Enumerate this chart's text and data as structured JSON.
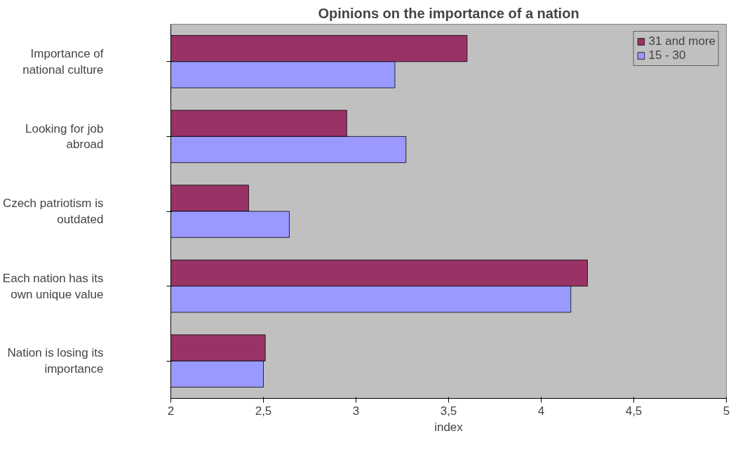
{
  "chart_data": {
    "type": "bar",
    "orientation": "horizontal",
    "title": "Opinions on the importance of a nation",
    "xlabel": "index",
    "categories": [
      "Importance of national culture",
      "Looking for job abroad",
      "Czech patriotism is outdated",
      "Each nation has its own unique value",
      "Nation is losing its importance"
    ],
    "series": [
      {
        "name": "31 and more",
        "color": "#993366",
        "values": [
          3.6,
          2.95,
          2.42,
          4.25,
          2.51
        ]
      },
      {
        "name": "15 - 30",
        "color": "#9999ff",
        "values": [
          3.21,
          3.27,
          2.64,
          4.16,
          2.5
        ]
      }
    ],
    "xlim": [
      2,
      5
    ],
    "xticks": [
      2,
      {
        "value": 2.5,
        "label": "2,5"
      },
      3,
      {
        "value": 3.5,
        "label": "3,5"
      },
      4,
      {
        "value": 4.5,
        "label": "4,5"
      },
      5
    ],
    "grid": false,
    "legend": "top right"
  }
}
